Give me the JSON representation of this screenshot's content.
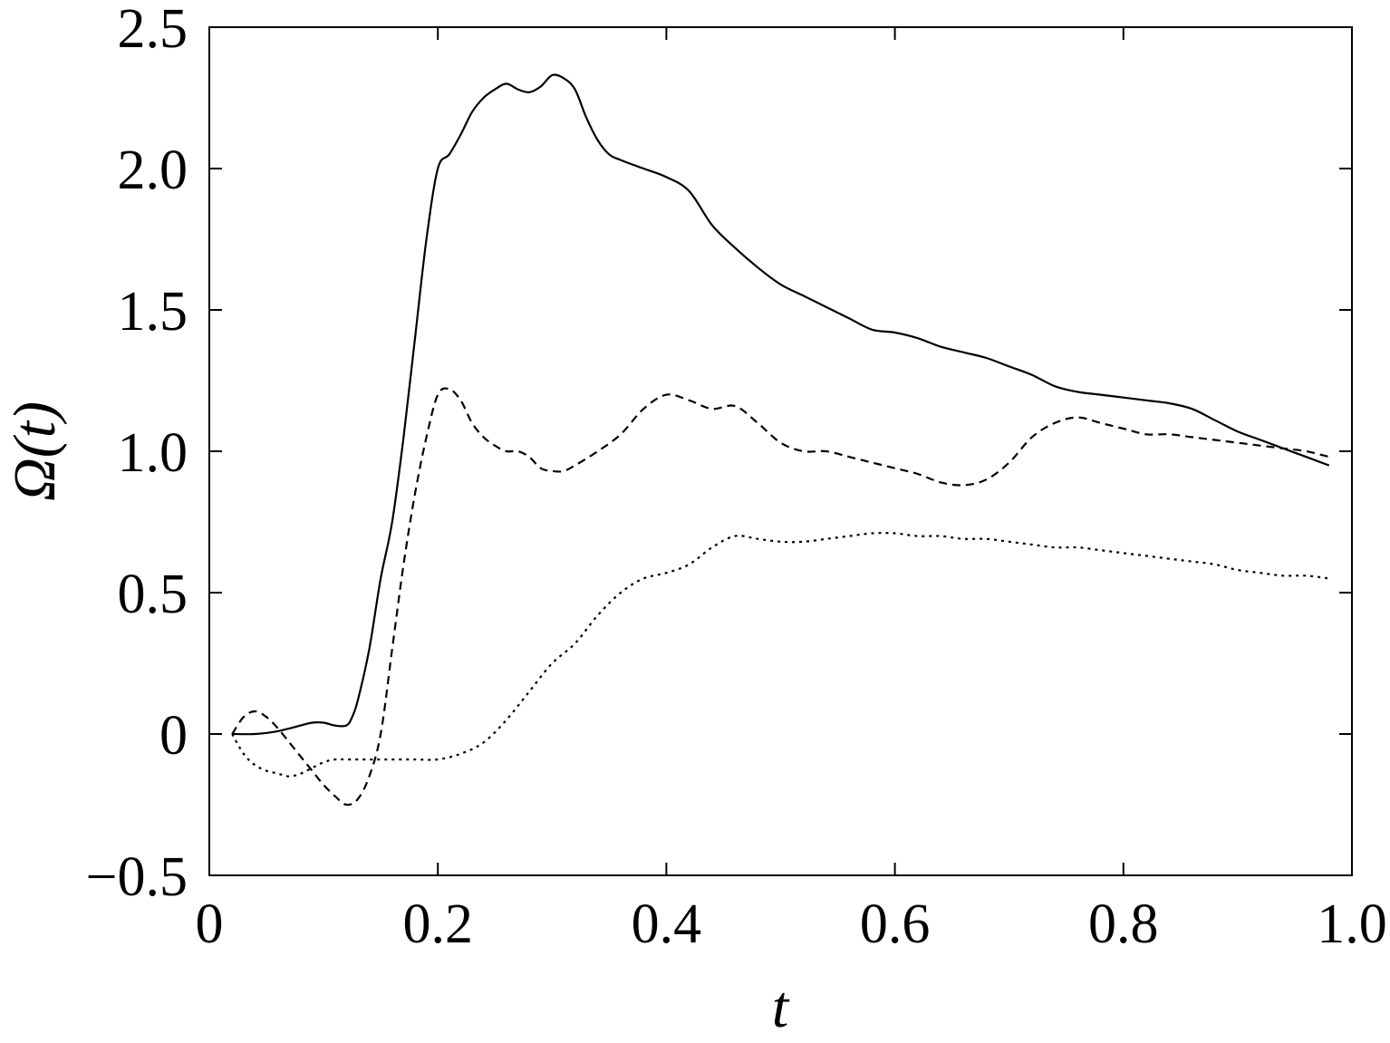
{
  "chart_data": {
    "type": "line",
    "title": "",
    "xlabel": "t",
    "ylabel": "Ω(t)",
    "xlim": [
      0,
      1.0
    ],
    "ylim": [
      -0.5,
      2.5
    ],
    "x_ticks": [
      0,
      0.2,
      0.4,
      0.6,
      0.8,
      1.0
    ],
    "x_tick_labels": [
      "0",
      "0.2",
      "0.4",
      "0.6",
      "0.8",
      "1.0"
    ],
    "y_ticks": [
      -0.5,
      0,
      0.5,
      1.0,
      1.5,
      2.0,
      2.5
    ],
    "y_tick_labels": [
      "−0.5",
      "0",
      "0.5",
      "1.0",
      "1.5",
      "2.0",
      "2.5"
    ],
    "grid": false,
    "legend": "none",
    "series": [
      {
        "style": "solid",
        "x": [
          0.02,
          0.04,
          0.06,
          0.08,
          0.09,
          0.1,
          0.11,
          0.12,
          0.125,
          0.13,
          0.14,
          0.15,
          0.16,
          0.17,
          0.18,
          0.19,
          0.2,
          0.21,
          0.22,
          0.23,
          0.24,
          0.25,
          0.26,
          0.27,
          0.28,
          0.29,
          0.3,
          0.31,
          0.32,
          0.33,
          0.34,
          0.35,
          0.36,
          0.38,
          0.4,
          0.42,
          0.44,
          0.46,
          0.48,
          0.5,
          0.52,
          0.54,
          0.56,
          0.58,
          0.6,
          0.62,
          0.64,
          0.66,
          0.68,
          0.7,
          0.72,
          0.74,
          0.76,
          0.78,
          0.8,
          0.82,
          0.84,
          0.86,
          0.88,
          0.9,
          0.92,
          0.94,
          0.96,
          0.98
        ],
        "y": [
          0.0,
          0.0,
          0.01,
          0.03,
          0.04,
          0.04,
          0.03,
          0.03,
          0.06,
          0.12,
          0.3,
          0.55,
          0.75,
          1.05,
          1.4,
          1.75,
          2.0,
          2.05,
          2.12,
          2.2,
          2.25,
          2.28,
          2.3,
          2.28,
          2.27,
          2.29,
          2.33,
          2.32,
          2.28,
          2.18,
          2.1,
          2.05,
          2.03,
          2.0,
          1.97,
          1.92,
          1.8,
          1.72,
          1.65,
          1.59,
          1.55,
          1.51,
          1.47,
          1.43,
          1.42,
          1.4,
          1.37,
          1.35,
          1.33,
          1.3,
          1.27,
          1.23,
          1.21,
          1.2,
          1.19,
          1.18,
          1.17,
          1.15,
          1.11,
          1.07,
          1.04,
          1.01,
          0.98,
          0.95
        ]
      },
      {
        "style": "dashed",
        "x": [
          0.02,
          0.03,
          0.04,
          0.05,
          0.06,
          0.07,
          0.08,
          0.09,
          0.1,
          0.11,
          0.12,
          0.13,
          0.14,
          0.15,
          0.16,
          0.17,
          0.18,
          0.19,
          0.2,
          0.21,
          0.22,
          0.23,
          0.24,
          0.25,
          0.26,
          0.27,
          0.28,
          0.29,
          0.3,
          0.31,
          0.32,
          0.34,
          0.36,
          0.38,
          0.4,
          0.42,
          0.44,
          0.46,
          0.48,
          0.5,
          0.52,
          0.54,
          0.56,
          0.58,
          0.6,
          0.62,
          0.64,
          0.66,
          0.68,
          0.7,
          0.72,
          0.74,
          0.76,
          0.78,
          0.8,
          0.82,
          0.84,
          0.86,
          0.88,
          0.9,
          0.92,
          0.94,
          0.96,
          0.98
        ],
        "y": [
          0.0,
          0.06,
          0.08,
          0.06,
          0.02,
          -0.03,
          -0.08,
          -0.13,
          -0.18,
          -0.22,
          -0.25,
          -0.23,
          -0.15,
          0.0,
          0.3,
          0.6,
          0.85,
          1.05,
          1.2,
          1.22,
          1.18,
          1.1,
          1.05,
          1.02,
          1.0,
          1.0,
          0.98,
          0.94,
          0.93,
          0.93,
          0.95,
          1.0,
          1.06,
          1.15,
          1.2,
          1.18,
          1.15,
          1.16,
          1.1,
          1.03,
          1.0,
          1.0,
          0.98,
          0.96,
          0.94,
          0.92,
          0.89,
          0.88,
          0.9,
          0.96,
          1.05,
          1.1,
          1.12,
          1.1,
          1.08,
          1.06,
          1.06,
          1.05,
          1.04,
          1.03,
          1.02,
          1.01,
          1.0,
          0.98
        ]
      },
      {
        "style": "dotted",
        "x": [
          0.02,
          0.03,
          0.04,
          0.05,
          0.06,
          0.07,
          0.08,
          0.09,
          0.1,
          0.11,
          0.12,
          0.14,
          0.16,
          0.18,
          0.2,
          0.22,
          0.24,
          0.26,
          0.28,
          0.3,
          0.32,
          0.34,
          0.36,
          0.38,
          0.4,
          0.42,
          0.44,
          0.46,
          0.48,
          0.5,
          0.52,
          0.54,
          0.56,
          0.58,
          0.6,
          0.62,
          0.64,
          0.66,
          0.68,
          0.7,
          0.72,
          0.74,
          0.76,
          0.78,
          0.8,
          0.82,
          0.84,
          0.86,
          0.88,
          0.9,
          0.92,
          0.94,
          0.96,
          0.98
        ],
        "y": [
          0.0,
          -0.07,
          -0.11,
          -0.13,
          -0.14,
          -0.15,
          -0.14,
          -0.12,
          -0.1,
          -0.09,
          -0.09,
          -0.09,
          -0.09,
          -0.09,
          -0.09,
          -0.07,
          -0.03,
          0.05,
          0.15,
          0.25,
          0.32,
          0.42,
          0.5,
          0.55,
          0.57,
          0.6,
          0.66,
          0.7,
          0.69,
          0.68,
          0.68,
          0.69,
          0.7,
          0.71,
          0.71,
          0.7,
          0.7,
          0.69,
          0.69,
          0.68,
          0.67,
          0.66,
          0.66,
          0.65,
          0.64,
          0.63,
          0.62,
          0.61,
          0.6,
          0.58,
          0.57,
          0.56,
          0.56,
          0.55
        ]
      }
    ]
  }
}
